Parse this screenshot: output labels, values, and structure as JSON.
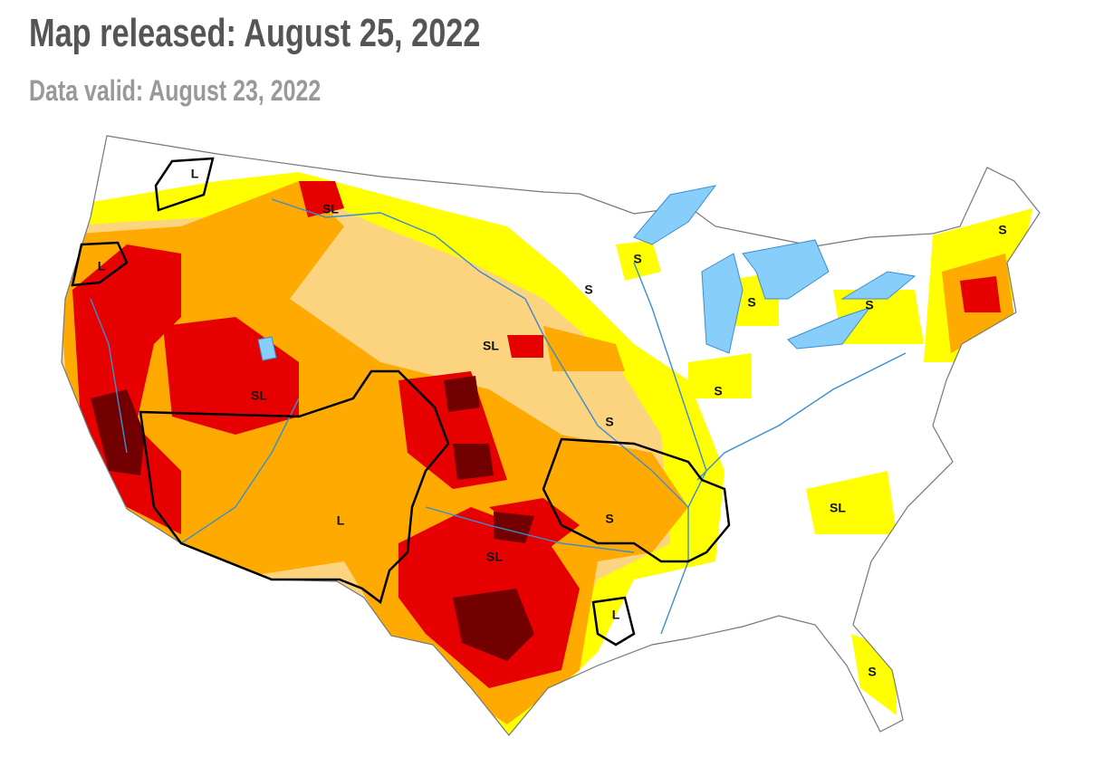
{
  "header": {
    "title": "Map released: August 25, 2022",
    "subtitle": "Data valid: August 23, 2022"
  },
  "map": {
    "labels": [
      "L",
      "L",
      "SL",
      "S",
      "S",
      "S",
      "S",
      "S",
      "SL",
      "SL",
      "S",
      "S",
      "L",
      "S",
      "SL",
      "SL",
      "L",
      "S"
    ]
  }
}
